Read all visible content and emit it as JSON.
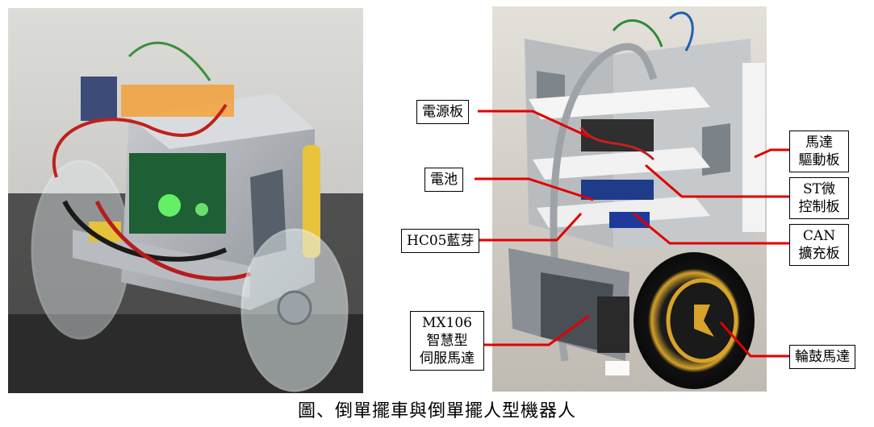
{
  "labels": {
    "power_board": "電源板",
    "battery": "電池",
    "bluetooth": "HC05藍芽",
    "servo": [
      "MX106",
      "智慧型",
      "伺服馬達"
    ],
    "motor_driver": [
      "馬達",
      "驅動板"
    ],
    "st_mcu": [
      "ST微",
      "控制板"
    ],
    "can_board": [
      "CAN",
      "擴充板"
    ],
    "hub_motor": "輪鼓馬達"
  },
  "caption": "圖、倒單擺車與倒單擺人型機器人",
  "colors": {
    "leader": "#e00000",
    "callout_border": "#000000"
  }
}
